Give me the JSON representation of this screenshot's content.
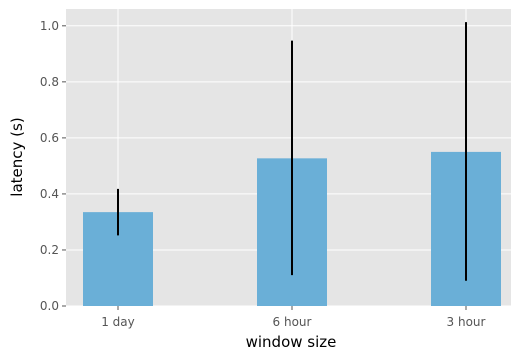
{
  "chart_data": {
    "type": "bar",
    "title": "",
    "xlabel": "window size",
    "ylabel": "latency (s)",
    "categories": [
      "1 day",
      "6 hour",
      "3 hour"
    ],
    "values": [
      0.335,
      0.527,
      0.55
    ],
    "error_low": [
      0.252,
      0.11,
      0.09
    ],
    "error_high": [
      0.418,
      0.947,
      1.013
    ],
    "ylim": [
      0,
      1.06
    ],
    "yticks": [
      0.0,
      0.2,
      0.4,
      0.6,
      0.8,
      1.0
    ],
    "ytick_labels": [
      "0.0",
      "0.2",
      "0.4",
      "0.6",
      "0.8",
      "1.0"
    ],
    "grid": true,
    "colors": {
      "bar": "#6aafd7",
      "error_bar": "#000000",
      "background": "#e5e5e5",
      "grid": "#ffffff"
    }
  }
}
